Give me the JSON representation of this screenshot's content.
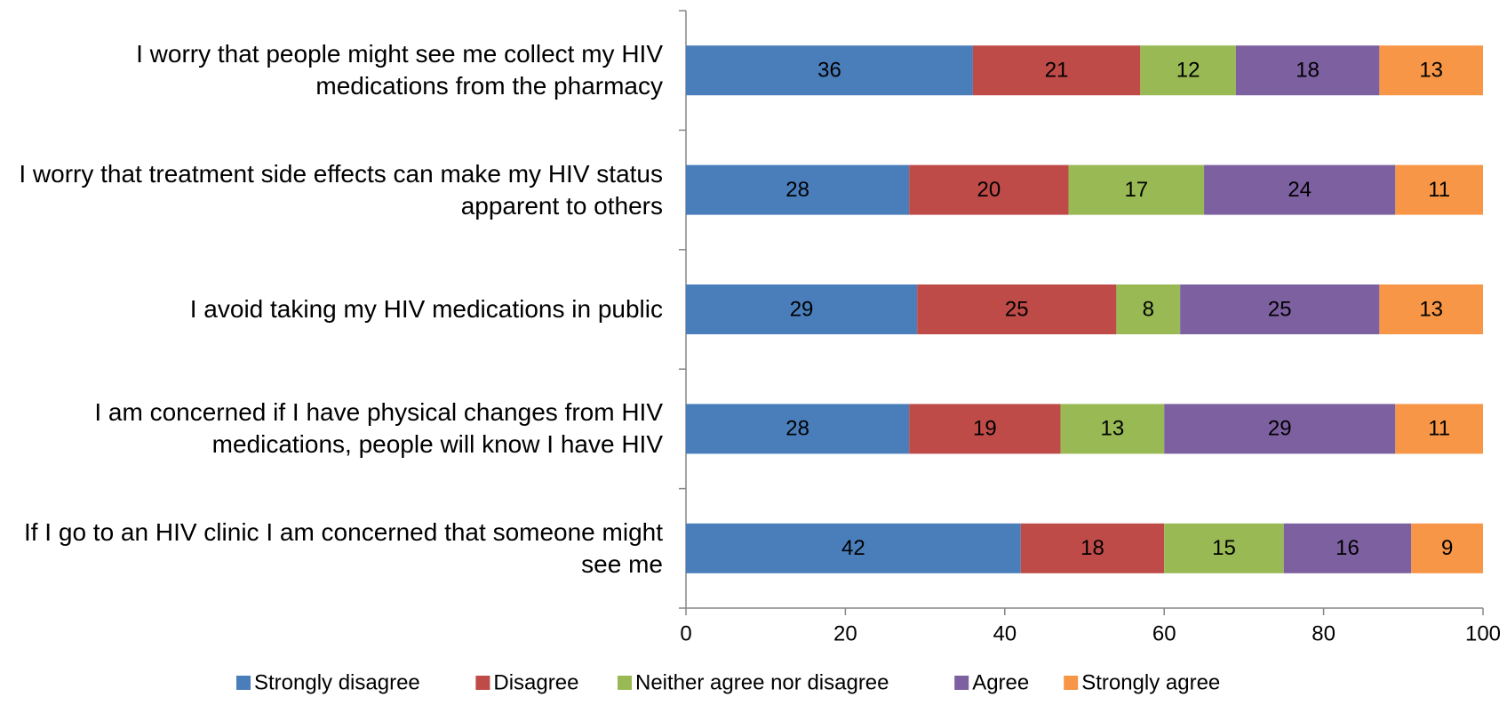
{
  "chart_data": {
    "type": "stacked-bar-horizontal",
    "categories": [
      "I worry that people might see me collect my HIV medications from the pharmacy",
      "I worry that treatment side effects can make my HIV status apparent to others",
      "I avoid taking my HIV medications in public",
      "I am concerned if I have physical changes from HIV medications, people will know I have HIV",
      "If I go to an HIV clinic I am concerned that someone might see me"
    ],
    "series": [
      {
        "name": "Strongly disagree",
        "color": "#4a7ebb",
        "values": [
          36,
          28,
          29,
          28,
          42
        ]
      },
      {
        "name": "Disagree",
        "color": "#be4b48",
        "values": [
          21,
          20,
          25,
          19,
          18
        ]
      },
      {
        "name": "Neither agree nor disagree",
        "color": "#98b954",
        "values": [
          12,
          17,
          8,
          13,
          15
        ]
      },
      {
        "name": "Agree",
        "color": "#7d60a0",
        "values": [
          18,
          24,
          25,
          29,
          16
        ]
      },
      {
        "name": "Strongly agree",
        "color": "#f79646",
        "values": [
          13,
          11,
          13,
          11,
          9
        ]
      }
    ],
    "xlim": [
      0,
      100
    ],
    "xticks": [
      0,
      20,
      40,
      60,
      80,
      100
    ],
    "legend": "bottom"
  }
}
